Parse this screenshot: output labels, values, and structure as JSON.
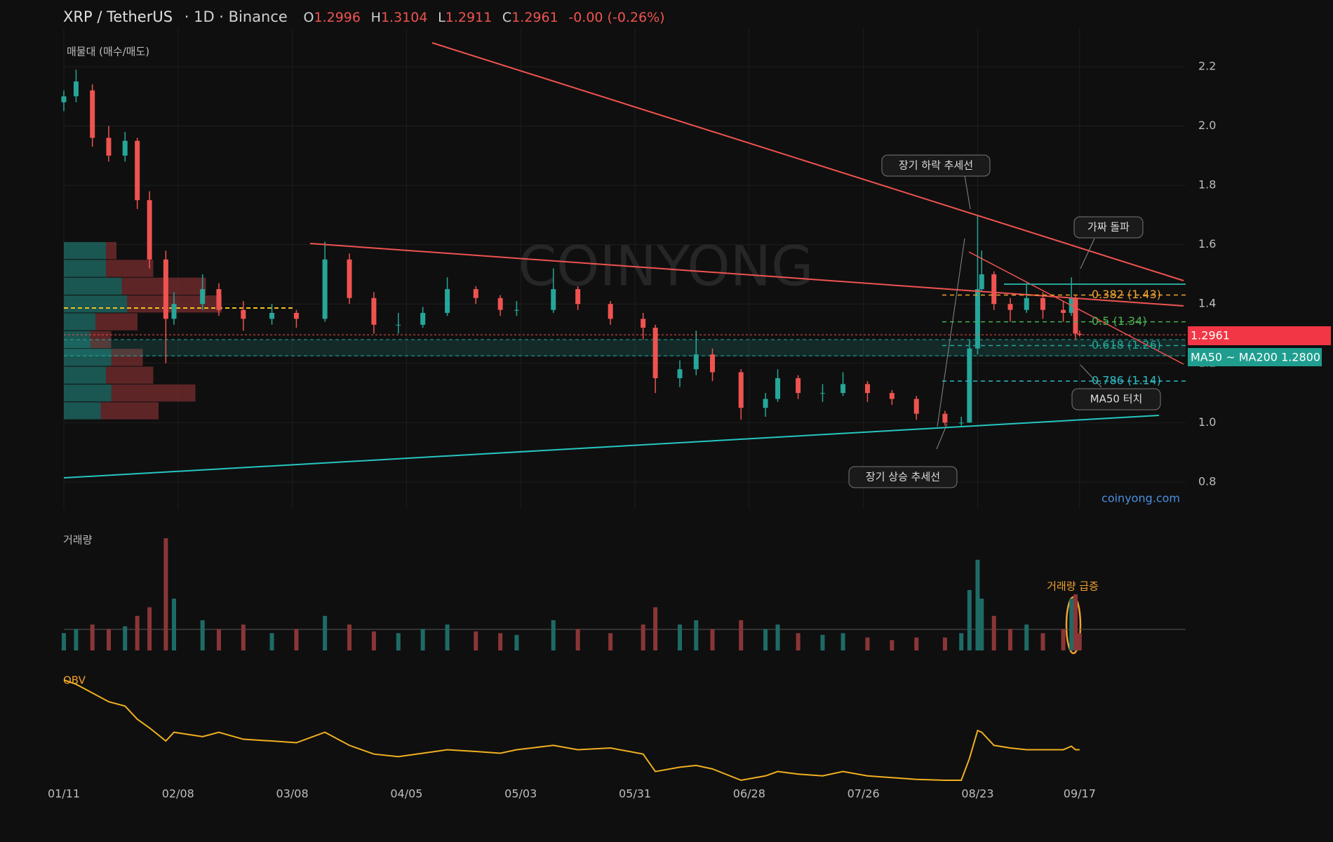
{
  "chart_data": {
    "type": "candlestick",
    "header": {
      "symbol": "XRP / TetherUS",
      "meta": "· 1D · Binance",
      "o_label": "O",
      "h_label": "H",
      "l_label": "L",
      "c_label": "C",
      "change": "-0.00 (-0.26%)"
    },
    "x": [
      0,
      3,
      7,
      11,
      15,
      18,
      21,
      25,
      27,
      34,
      38,
      44,
      51,
      57,
      64,
      70,
      76,
      82,
      88,
      94,
      101,
      107,
      111,
      120,
      126,
      134,
      142,
      145,
      151,
      155,
      159,
      166,
      172,
      175,
      180,
      186,
      191,
      197,
      203,
      209,
      216,
      220,
      222,
      224,
      225,
      228,
      232,
      236,
      240,
      245,
      247,
      248,
      249
    ],
    "open": [
      2.08,
      2.1,
      2.12,
      1.96,
      1.9,
      1.95,
      1.75,
      1.55,
      1.35,
      1.4,
      1.45,
      1.38,
      1.35,
      1.37,
      1.35,
      1.55,
      1.42,
      1.33,
      1.33,
      1.37,
      1.45,
      1.42,
      1.38,
      1.38,
      1.45,
      1.4,
      1.35,
      1.32,
      1.15,
      1.18,
      1.23,
      1.17,
      1.05,
      1.08,
      1.15,
      1.1,
      1.1,
      1.13,
      1.1,
      1.08,
      1.03,
      1.0,
      1.0,
      1.25,
      1.45,
      1.5,
      1.4,
      1.38,
      1.42,
      1.38,
      1.37,
      1.42,
      1.2996
    ],
    "high": [
      2.12,
      2.19,
      2.14,
      2.0,
      1.98,
      1.96,
      1.78,
      1.58,
      1.44,
      1.5,
      1.47,
      1.41,
      1.4,
      1.38,
      1.61,
      1.57,
      1.44,
      1.37,
      1.39,
      1.49,
      1.46,
      1.43,
      1.41,
      1.52,
      1.46,
      1.41,
      1.37,
      1.33,
      1.21,
      1.31,
      1.25,
      1.18,
      1.1,
      1.18,
      1.16,
      1.13,
      1.17,
      1.14,
      1.11,
      1.09,
      1.04,
      1.02,
      1.28,
      1.7,
      1.58,
      1.51,
      1.42,
      1.47,
      1.44,
      1.41,
      1.49,
      1.43,
      1.3104
    ],
    "low": [
      2.05,
      2.08,
      1.93,
      1.88,
      1.88,
      1.72,
      1.52,
      1.2,
      1.33,
      1.38,
      1.36,
      1.31,
      1.33,
      1.32,
      1.34,
      1.4,
      1.3,
      1.3,
      1.32,
      1.36,
      1.4,
      1.36,
      1.36,
      1.37,
      1.38,
      1.33,
      1.28,
      1.1,
      1.12,
      1.16,
      1.14,
      1.01,
      1.02,
      1.07,
      1.08,
      1.07,
      1.09,
      1.07,
      1.06,
      1.01,
      0.99,
      0.99,
      1.0,
      1.23,
      1.44,
      1.38,
      1.34,
      1.37,
      1.35,
      1.34,
      1.36,
      1.28,
      1.2911
    ],
    "close": [
      2.1,
      2.15,
      1.96,
      1.9,
      1.95,
      1.75,
      1.55,
      1.35,
      1.4,
      1.45,
      1.38,
      1.35,
      1.37,
      1.35,
      1.55,
      1.42,
      1.33,
      1.33,
      1.37,
      1.45,
      1.42,
      1.38,
      1.38,
      1.45,
      1.4,
      1.35,
      1.32,
      1.15,
      1.18,
      1.23,
      1.17,
      1.05,
      1.08,
      1.15,
      1.1,
      1.1,
      1.13,
      1.1,
      1.08,
      1.03,
      1.0,
      1.0,
      1.25,
      1.45,
      1.5,
      1.4,
      1.38,
      1.42,
      1.38,
      1.37,
      1.42,
      1.3,
      1.2961
    ],
    "volume": [
      20,
      25,
      30,
      25,
      28,
      40,
      50,
      130,
      60,
      35,
      25,
      30,
      20,
      25,
      40,
      30,
      22,
      20,
      25,
      30,
      22,
      20,
      18,
      35,
      25,
      20,
      30,
      50,
      30,
      35,
      25,
      35,
      25,
      30,
      20,
      18,
      20,
      15,
      12,
      15,
      15,
      20,
      70,
      105,
      60,
      40,
      25,
      30,
      20,
      25,
      60,
      65,
      20
    ],
    "obv": [
      120,
      115,
      105,
      95,
      90,
      75,
      65,
      50,
      60,
      55,
      60,
      52,
      50,
      48,
      60,
      45,
      35,
      32,
      36,
      40,
      38,
      36,
      40,
      45,
      40,
      42,
      35,
      15,
      20,
      22,
      18,
      5,
      10,
      15,
      12,
      10,
      15,
      10,
      8,
      6,
      5,
      5,
      30,
      62,
      60,
      45,
      42,
      40,
      40,
      40,
      44,
      40,
      40
    ],
    "up_color": "#26a69a",
    "down_color": "#ef5350",
    "xlim": [
      0,
      275
    ],
    "xticks": [
      {
        "value": 0,
        "label": "01/11"
      },
      {
        "value": 28,
        "label": "02/08"
      },
      {
        "value": 56,
        "label": "03/08"
      },
      {
        "value": 84,
        "label": "04/05"
      },
      {
        "value": 112,
        "label": "05/03"
      },
      {
        "value": 140,
        "label": "05/31"
      },
      {
        "value": 168,
        "label": "06/28"
      },
      {
        "value": 196,
        "label": "07/26"
      },
      {
        "value": 224,
        "label": "08/23"
      },
      {
        "value": 249,
        "label": "09/17"
      }
    ],
    "ylim": [
      0.71,
      2.33
    ],
    "yticks": [
      {
        "value": 0.8,
        "label": "0.8"
      },
      {
        "value": 1.0,
        "label": "1.0"
      },
      {
        "value": 1.2,
        "label": "1.2"
      },
      {
        "value": 1.4,
        "label": "1.4"
      },
      {
        "value": 1.6,
        "label": "1.6"
      },
      {
        "value": 1.8,
        "label": "1.8"
      },
      {
        "value": 2.0,
        "label": "2.0"
      },
      {
        "value": 2.2,
        "label": "2.2"
      }
    ],
    "grid": true,
    "fib_levels": [
      {
        "value": 1.43,
        "label": "0.382 (1.43)",
        "color": "#f0a030"
      },
      {
        "value": 1.34,
        "label": "0.5 (1.34)",
        "color": "#4caf50"
      },
      {
        "value": 1.26,
        "label": "0.618 (1.26)",
        "color": "#26a69a"
      },
      {
        "value": 1.14,
        "label": "0.786 (1.14)",
        "color": "#2fb8c0"
      }
    ],
    "volume_profile": {
      "title": "매물대 (매수/매도)",
      "prices": [
        1.58,
        1.52,
        1.46,
        1.4,
        1.34,
        1.28,
        1.22,
        1.16,
        1.1,
        1.04
      ],
      "buy": [
        40,
        40,
        55,
        60,
        30,
        25,
        45,
        40,
        45,
        35
      ],
      "sell": [
        10,
        45,
        80,
        90,
        40,
        20,
        30,
        45,
        80,
        55
      ]
    },
    "ma_tag": "MA50 ~ MA200 1.2800",
    "volume_title": "거래량",
    "obv_title": "OBV",
    "watermark": "COINYONG",
    "source": "coinyong.com",
    "annotations": [
      "장기 하락 추세선",
      "가짜 돌파",
      "MA50 터치",
      "장기 상승 추세선",
      "거래량 급증"
    ]
  }
}
